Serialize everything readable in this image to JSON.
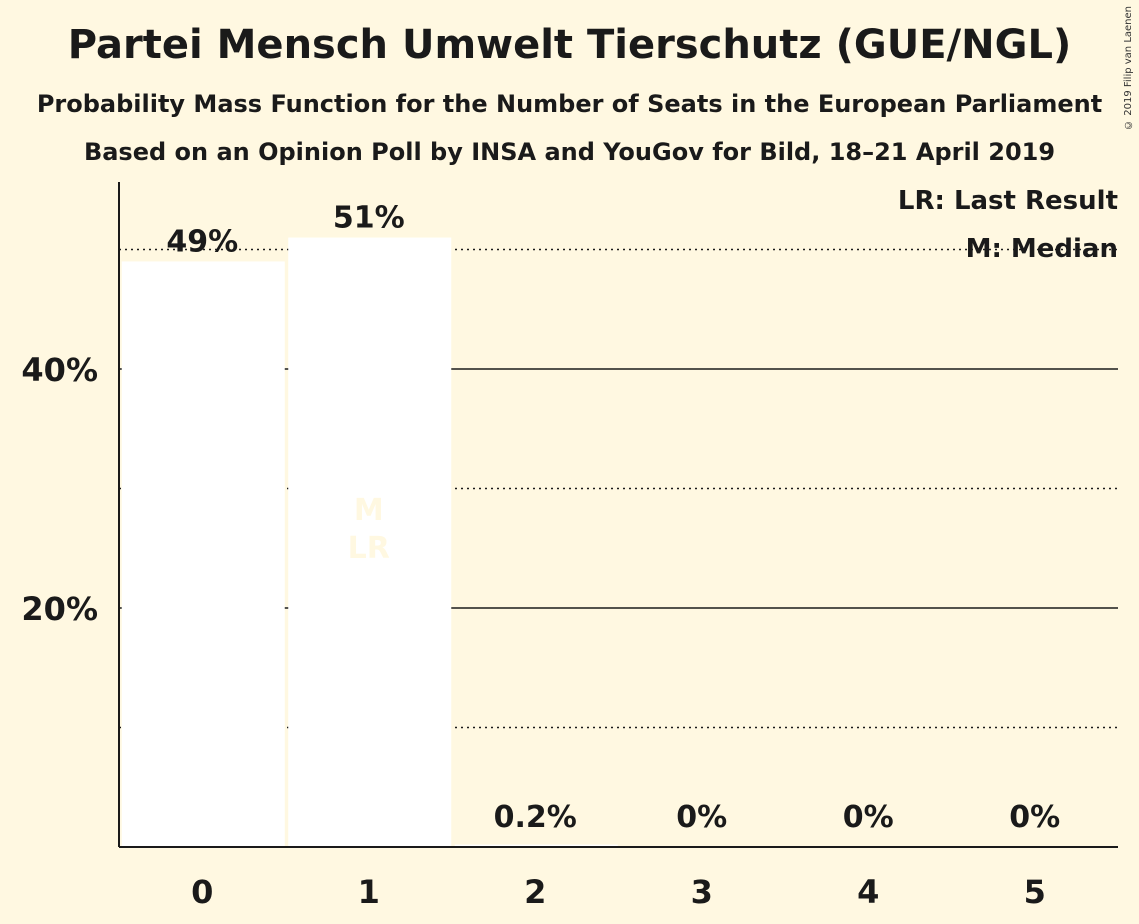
{
  "copyright": "© 2019 Filip van Laenen",
  "chart_data": {
    "type": "bar",
    "title": "Partei Mensch Umwelt Tierschutz (GUE/NGL)",
    "subtitle": "Probability Mass Function for the Number of Seats in the European Parliament",
    "subtitle2": "Based on an Opinion Poll by INSA and YouGov for Bild, 18–21 April 2019",
    "xlabel": "",
    "ylabel": "",
    "ylim": [
      0,
      55
    ],
    "categories": [
      "0",
      "1",
      "2",
      "3",
      "4",
      "5"
    ],
    "values": [
      49,
      51,
      0.2,
      0,
      0,
      0
    ],
    "value_labels": [
      "49%",
      "51%",
      "0.2%",
      "0%",
      "0%",
      "0%"
    ],
    "y_ticks": [
      {
        "value": 20,
        "label": "20%"
      },
      {
        "value": 40,
        "label": "40%"
      }
    ],
    "minor_gridlines": [
      10,
      30,
      50
    ],
    "median_category": "1",
    "last_result_category": "1",
    "median_marker": "M",
    "last_result_marker": "LR",
    "legend": {
      "position": "top-right",
      "last_result": "LR: Last Result",
      "median": "M: Median"
    },
    "colors": {
      "background": "#fff8e1",
      "bar": "#ffffff",
      "axis": "#1a1a1a"
    }
  }
}
